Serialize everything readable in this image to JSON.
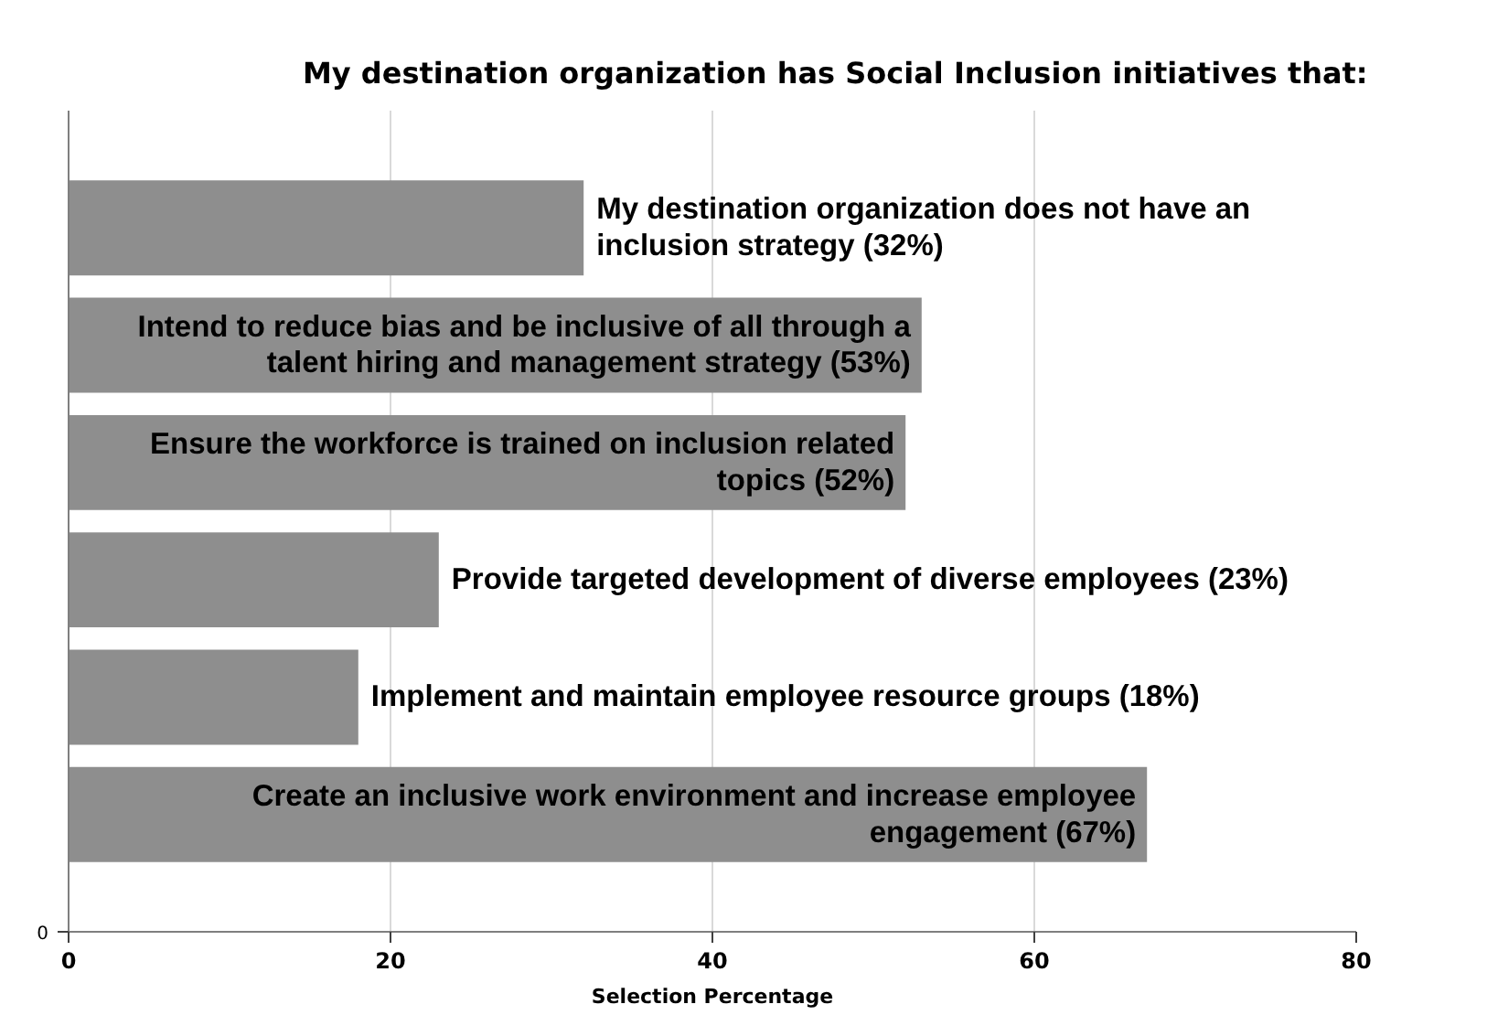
{
  "chart_data": {
    "type": "bar",
    "orientation": "horizontal",
    "title": "My destination organization has Social Inclusion initiatives that:",
    "xlabel": "Selection Percentage",
    "categories": [
      "My destination organization does not have an inclusion strategy (32%)",
      "Intend to reduce bias and be inclusive of all through a talent hiring and management strategy (53%)",
      "Ensure the workforce is trained on inclusion related topics (52%)",
      "Provide targeted development of diverse employees (23%)",
      "Implement and maintain employee resource groups (18%)",
      "Create an inclusive work environment and increase employee engagement (67%)"
    ],
    "values": [
      32,
      53,
      52,
      23,
      18,
      67
    ],
    "color": "#8e8e8e",
    "xlim": [
      0,
      80
    ],
    "xticks": [
      0,
      20,
      40,
      60,
      80
    ],
    "grid": "x",
    "annotations": [
      "0"
    ]
  }
}
